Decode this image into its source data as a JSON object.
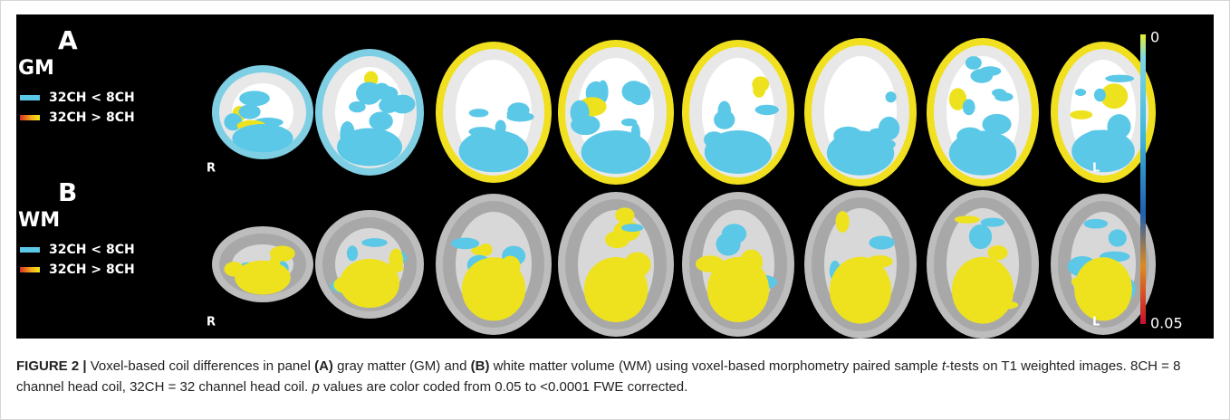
{
  "panels": [
    {
      "label": "A",
      "tissue": "GM",
      "legend": [
        "32CH < 8CH",
        "32CH > 8CH"
      ],
      "left_side": "R",
      "right_side": "L"
    },
    {
      "label": "B",
      "tissue": "WM",
      "legend": [
        "32CH < 8CH",
        "32CH > 8CH"
      ],
      "left_side": "R",
      "right_side": "L"
    }
  ],
  "colorbar": {
    "top_label": "0",
    "bottom_label": "0.05"
  },
  "caption": {
    "segments": [
      "FIGURE 2 |",
      " Voxel-based coil differences in panel ",
      "(A)",
      " gray matter (GM) and ",
      "(B)",
      " white matter volume (WM) using voxel-based morphometry paired sample ",
      "t",
      "-tests on T1 weighted images. 8CH = 8 channel head coil, 32CH = 32 channel head coil. ",
      "p",
      " values are color coded from 0.05 to <0.0001 FWE corrected."
    ]
  }
}
